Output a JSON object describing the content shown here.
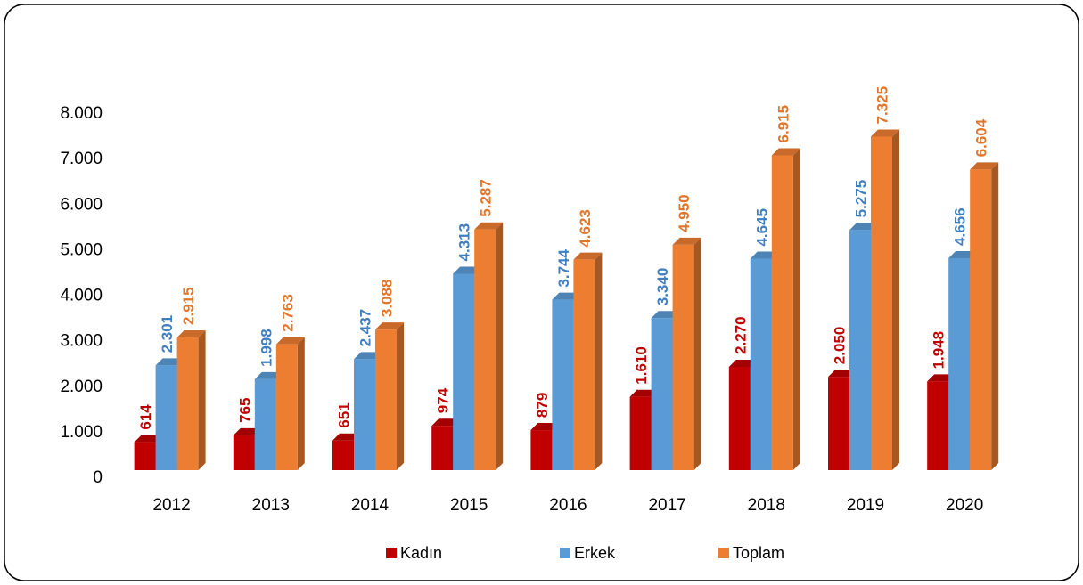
{
  "chart_data": {
    "type": "bar3d",
    "categories": [
      "2012",
      "2013",
      "2014",
      "2015",
      "2016",
      "2017",
      "2018",
      "2019",
      "2020"
    ],
    "series": [
      {
        "name": "Kadın",
        "color": "#c00000",
        "label_color": "#c00000",
        "values": [
          614,
          765,
          651,
          974,
          879,
          1610,
          2270,
          2050,
          1948
        ],
        "value_labels": [
          "614",
          "765",
          "651",
          "974",
          "879",
          "1.610",
          "2.270",
          "2.050",
          "1.948"
        ]
      },
      {
        "name": "Erkek",
        "color": "#5b9bd5",
        "label_color": "#3f7fc1",
        "values": [
          2301,
          1998,
          2437,
          4313,
          3744,
          3340,
          4645,
          5275,
          4656
        ],
        "value_labels": [
          "2.301",
          "1.998",
          "2.437",
          "4.313",
          "3.744",
          "3.340",
          "4.645",
          "5.275",
          "4.656"
        ]
      },
      {
        "name": "Toplam",
        "color": "#ed7d31",
        "label_color": "#e0762c",
        "values": [
          2915,
          2763,
          3088,
          5287,
          4623,
          4950,
          6915,
          7325,
          6604
        ],
        "value_labels": [
          "2.915",
          "2.763",
          "3.088",
          "5.287",
          "4.623",
          "4.950",
          "6.915",
          "7.325",
          "6.604"
        ]
      }
    ],
    "ylim": [
      0,
      8000
    ],
    "yticks": [
      0,
      {
        "value": 1000,
        "label": "1.000"
      },
      {
        "value": 2000,
        "label": "2.000"
      },
      {
        "value": 3000,
        "label": "3.000"
      },
      {
        "value": 4000,
        "label": "4.000"
      },
      {
        "value": 5000,
        "label": "5.000"
      },
      {
        "value": 6000,
        "label": "6.000"
      },
      {
        "value": 7000,
        "label": "7.000"
      },
      {
        "value": 8000,
        "label": "8.000"
      }
    ],
    "grid": false,
    "legend": "bottom"
  }
}
